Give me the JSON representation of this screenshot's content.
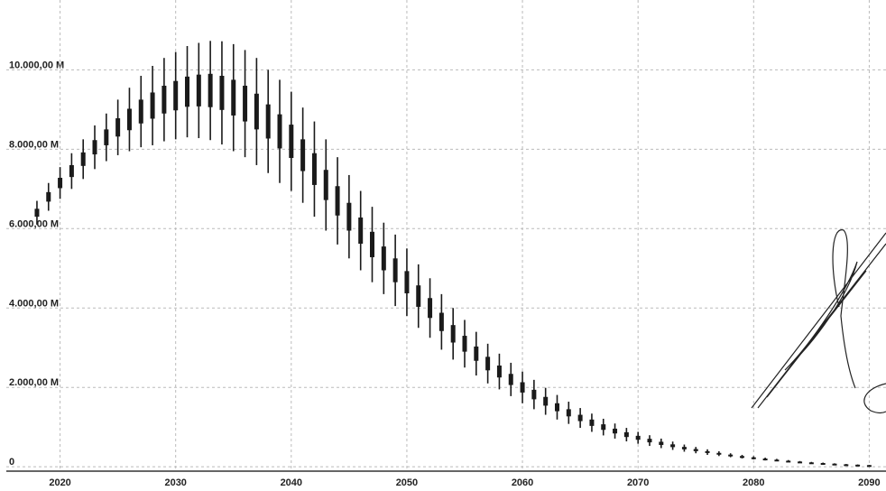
{
  "chart_data": {
    "type": "errorbox",
    "x": [
      2018,
      2019,
      2020,
      2021,
      2022,
      2023,
      2024,
      2025,
      2026,
      2027,
      2028,
      2029,
      2030,
      2031,
      2032,
      2033,
      2034,
      2035,
      2036,
      2037,
      2038,
      2039,
      2040,
      2041,
      2042,
      2043,
      2044,
      2045,
      2046,
      2047,
      2048,
      2049,
      2050,
      2051,
      2052,
      2053,
      2054,
      2055,
      2056,
      2057,
      2058,
      2059,
      2060,
      2061,
      2062,
      2063,
      2064,
      2065,
      2066,
      2067,
      2068,
      2069,
      2070,
      2071,
      2072,
      2073,
      2074,
      2075,
      2076,
      2077,
      2078,
      2079,
      2080,
      2081,
      2082,
      2083,
      2084,
      2085,
      2086,
      2087,
      2088,
      2089,
      2090
    ],
    "values": [
      6400,
      6800,
      7150,
      7450,
      7750,
      8050,
      8300,
      8550,
      8750,
      8950,
      9100,
      9250,
      9350,
      9450,
      9480,
      9480,
      9420,
      9300,
      9150,
      8950,
      8700,
      8450,
      8200,
      7850,
      7500,
      7100,
      6700,
      6300,
      5950,
      5600,
      5250,
      4950,
      4650,
      4300,
      4000,
      3650,
      3350,
      3100,
      2850,
      2600,
      2400,
      2200,
      2000,
      1820,
      1650,
      1500,
      1360,
      1230,
      1110,
      1000,
      900,
      810,
      730,
      660,
      590,
      530,
      470,
      420,
      370,
      330,
      290,
      255,
      225,
      195,
      170,
      145,
      125,
      105,
      90,
      75,
      60,
      50,
      40
    ],
    "errors": [
      300,
      350,
      400,
      450,
      500,
      550,
      600,
      700,
      800,
      900,
      1000,
      1050,
      1100,
      1150,
      1200,
      1250,
      1300,
      1350,
      1350,
      1350,
      1300,
      1300,
      1250,
      1200,
      1200,
      1150,
      1100,
      1050,
      1000,
      950,
      900,
      900,
      850,
      800,
      750,
      700,
      650,
      600,
      550,
      500,
      450,
      420,
      400,
      370,
      340,
      310,
      280,
      250,
      230,
      210,
      190,
      170,
      150,
      135,
      120,
      105,
      90,
      80,
      70,
      60,
      50,
      45,
      40,
      35,
      30,
      25,
      20,
      18,
      15,
      12,
      10,
      8,
      6
    ],
    "box_errors": [
      100,
      120,
      130,
      150,
      170,
      180,
      200,
      230,
      270,
      300,
      330,
      350,
      370,
      380,
      400,
      420,
      430,
      450,
      450,
      450,
      430,
      430,
      420,
      400,
      400,
      380,
      370,
      350,
      330,
      320,
      300,
      300,
      280,
      270,
      250,
      230,
      220,
      200,
      180,
      170,
      150,
      140,
      130,
      120,
      110,
      100,
      90,
      80,
      80,
      70,
      60,
      60,
      50,
      45,
      40,
      35,
      30,
      27,
      23,
      20,
      17,
      15,
      13,
      12,
      10,
      8,
      7,
      6,
      5,
      4,
      3,
      3,
      2
    ],
    "color": "#1a1a1a",
    "xlim": [
      2015.35,
      2091.45
    ],
    "xticks": [
      2020,
      2030,
      2040,
      2050,
      2060,
      2070,
      2080,
      2090
    ],
    "ylim": [
      -110,
      11760
    ],
    "yticks": [
      0,
      {
        "value": 2000,
        "label": "2.000,00 M"
      },
      {
        "value": 4000,
        "label": "4.000,00 M"
      },
      {
        "value": 6000,
        "label": "6.000,00 M"
      },
      {
        "value": 8000,
        "label": "8.000,00 M"
      },
      {
        "value": 10000,
        "label": "10.000,00 M"
      }
    ],
    "grid": true
  }
}
